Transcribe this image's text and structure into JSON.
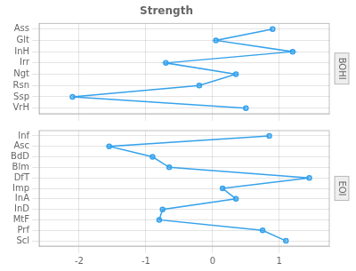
{
  "chart_data": [
    {
      "type": "line",
      "title": "Strength",
      "annotations": [
        "BOHI"
      ],
      "orientation": "horizontal",
      "categories": [
        "Ass",
        "Glt",
        "InH",
        "Irr",
        "Ngt",
        "Rsn",
        "Ssp",
        "VrH"
      ],
      "values": [
        0.9,
        0.05,
        1.2,
        -0.7,
        0.35,
        -0.2,
        -2.1,
        0.5
      ],
      "xlim": [
        -2.6,
        1.75
      ],
      "xticks": [
        -2,
        -1,
        0,
        1
      ],
      "grid": true,
      "tick_labels": "y",
      "marker": "circle"
    },
    {
      "type": "line",
      "annotations": [
        "EOI"
      ],
      "orientation": "horizontal",
      "categories": [
        "Inf",
        "Asc",
        "BdD",
        "Blm",
        "DfT",
        "Imp",
        "InA",
        "InD",
        "MtF",
        "Prf",
        "Scl"
      ],
      "values": [
        0.85,
        -1.55,
        -0.9,
        -0.65,
        1.45,
        0.15,
        0.35,
        -0.75,
        -0.8,
        0.75,
        1.1
      ],
      "xlim": [
        -2.6,
        1.75
      ],
      "xticks": [
        -2,
        -1,
        0,
        1
      ],
      "grid": true,
      "marker": "circle"
    }
  ]
}
